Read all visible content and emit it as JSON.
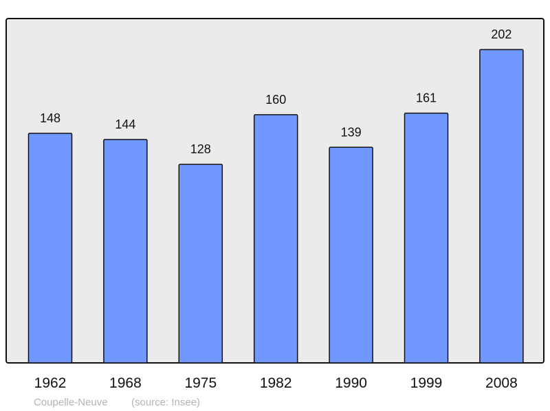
{
  "chart_data": {
    "type": "bar",
    "categories": [
      "1962",
      "1968",
      "1975",
      "1982",
      "1990",
      "1999",
      "2008"
    ],
    "values": [
      148,
      144,
      128,
      160,
      139,
      161,
      202
    ],
    "title": "",
    "xlabel": "",
    "ylabel": "",
    "ylim": [
      0,
      222
    ],
    "grid": false,
    "colors": {
      "bar": "#7098ff",
      "plot_background": "#ebebeb",
      "border": "#111111",
      "footer_text": "#b4b4b4"
    }
  },
  "footer": {
    "place": "Coupelle-Neuve",
    "source": "(source: Insee)"
  }
}
